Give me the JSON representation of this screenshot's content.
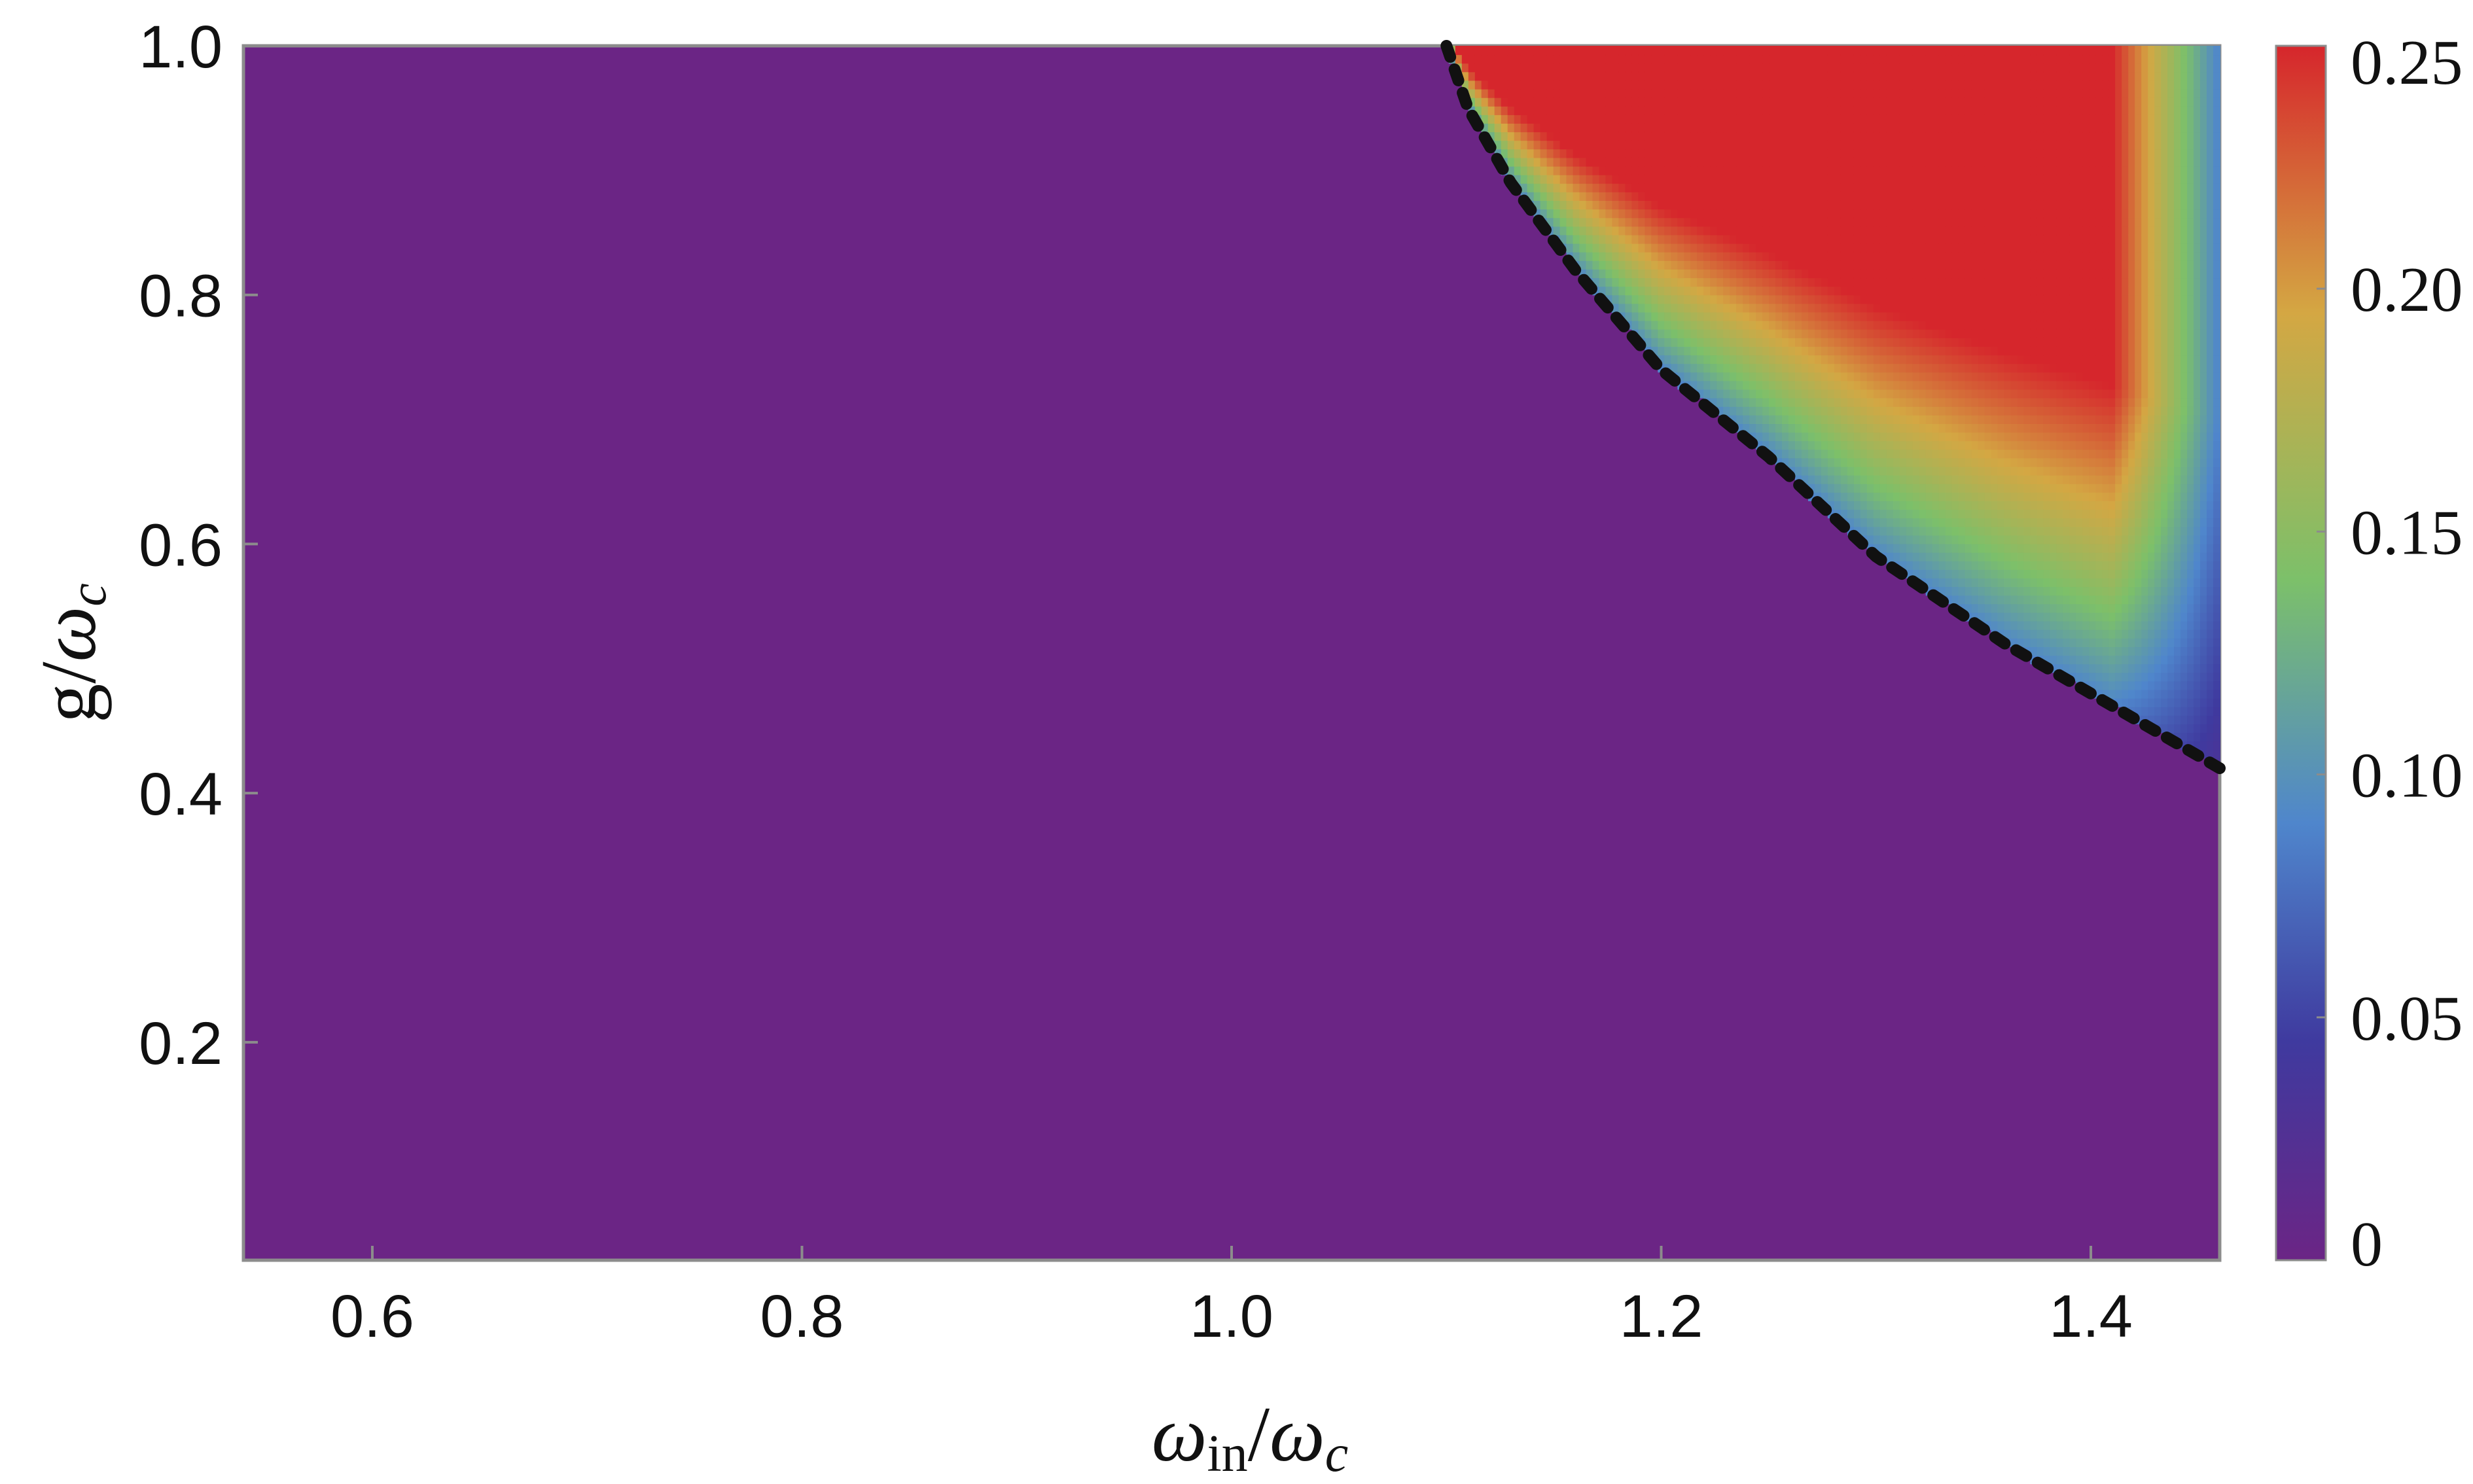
{
  "chart_data": {
    "type": "heatmap",
    "title": "",
    "xlabel": "ω_in/ω_c",
    "ylabel": "g/ω_c",
    "xlabel_parts": {
      "main": "ω",
      "sub1": "in",
      "sep": "/",
      "main2": "ω",
      "sub2": "c"
    },
    "ylabel_parts": {
      "main": "g",
      "sep": "/",
      "main2": "ω",
      "sub2": "c"
    },
    "xlim": [
      0.54,
      1.46
    ],
    "ylim": [
      0.025,
      1.0
    ],
    "x_ticks": [
      0.6,
      0.8,
      1.0,
      1.2,
      1.4
    ],
    "x_tick_labels": [
      "0.6",
      "0.8",
      "1.0",
      "1.2",
      "1.4"
    ],
    "y_ticks": [
      0.2,
      0.4,
      0.6,
      0.8,
      1.0
    ],
    "y_tick_labels": [
      "0.2",
      "0.4",
      "0.6",
      "0.8",
      "1.0"
    ],
    "colorbar": {
      "min": 0,
      "max": 0.25,
      "ticks": [
        0,
        0.05,
        0.1,
        0.15,
        0.2,
        0.25
      ],
      "tick_labels": [
        "0",
        "0.05",
        "0.10",
        "0.15",
        "0.20",
        "0.25"
      ],
      "colors": [
        "#6b2585",
        "#3f3a9f",
        "#4f86cc",
        "#7cc06a",
        "#d4a743",
        "#d6262c"
      ]
    },
    "background_value": 0,
    "region_description": "nonzero values only above the critical boundary curve",
    "boundary_curve": {
      "style": "dotted",
      "color": "#111111",
      "points": [
        {
          "x": 1.1,
          "y": 1.0
        },
        {
          "x": 1.11,
          "y": 0.95
        },
        {
          "x": 1.13,
          "y": 0.89
        },
        {
          "x": 1.16,
          "y": 0.82
        },
        {
          "x": 1.2,
          "y": 0.74
        },
        {
          "x": 1.25,
          "y": 0.67
        },
        {
          "x": 1.3,
          "y": 0.59
        },
        {
          "x": 1.36,
          "y": 0.52
        },
        {
          "x": 1.41,
          "y": 0.47
        },
        {
          "x": 1.46,
          "y": 0.42
        }
      ]
    },
    "grid": false,
    "legend": "colorbar-right"
  }
}
